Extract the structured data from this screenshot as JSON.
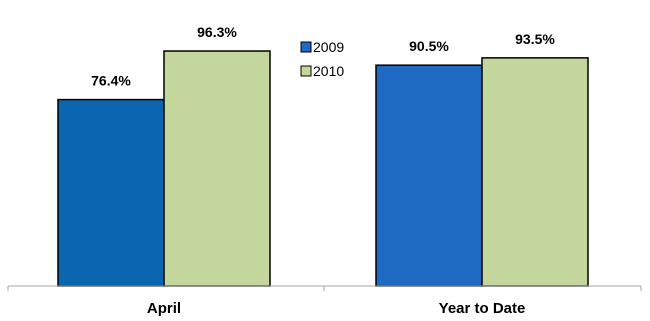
{
  "chart_data": {
    "type": "bar",
    "categories": [
      "April",
      "Year to Date"
    ],
    "series": [
      {
        "name": "2009",
        "values": [
          76.4,
          90.5
        ],
        "labels": [
          "76.4%",
          "90.5%"
        ],
        "colors": [
          "#0a65ae",
          "#1f6bc3"
        ]
      },
      {
        "name": "2010",
        "values": [
          96.3,
          93.5
        ],
        "labels": [
          "96.3%",
          "93.5%"
        ],
        "colors": [
          "#c3d69b",
          "#c3d69b"
        ]
      }
    ],
    "ylim": [
      0,
      100
    ],
    "grid": false,
    "legend_position": "top-center"
  },
  "legend": {
    "items": [
      {
        "label": "2009",
        "color": "#1f6bc3"
      },
      {
        "label": "2010",
        "color": "#c3d69b"
      }
    ]
  }
}
